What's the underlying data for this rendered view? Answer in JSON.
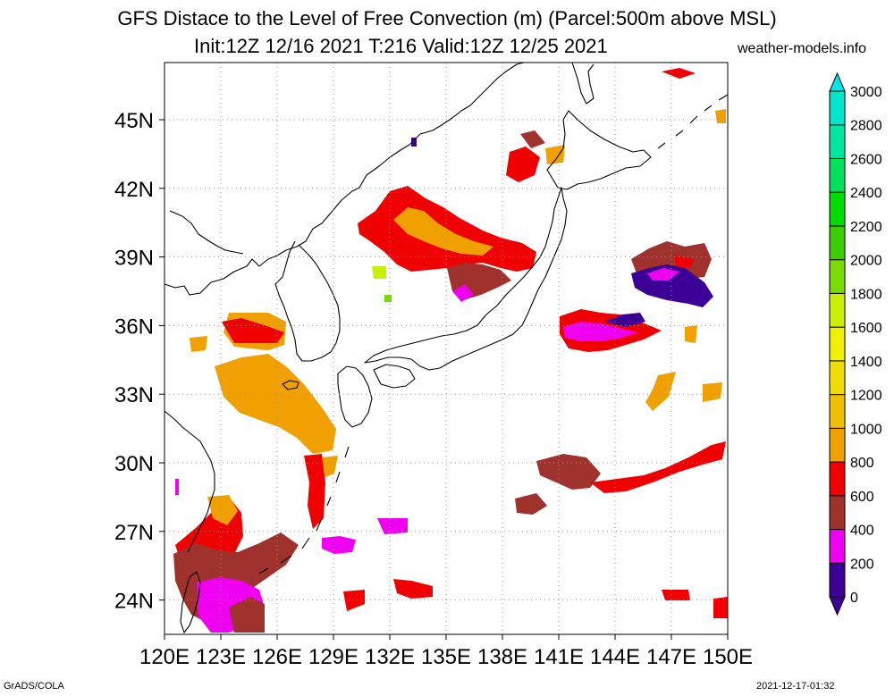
{
  "header": {
    "title": "GFS Distace to the Level of Free Convection (m) (Parcel:500m above MSL)",
    "subtitle": "Init:12Z 12/16 2021 T:216 Valid:12Z 12/25 2021",
    "site": "weather-models.info"
  },
  "footer": {
    "left": "GrADS/COLA",
    "right": "2021-12-17-01:32"
  },
  "map": {
    "lon_range": [
      120,
      150
    ],
    "lat_range": [
      22.5,
      47.5
    ],
    "lon_labels": [
      "120E",
      "123E",
      "126E",
      "129E",
      "132E",
      "135E",
      "138E",
      "141E",
      "144E",
      "147E",
      "150E"
    ],
    "lat_labels": [
      "24N",
      "27N",
      "30N",
      "33N",
      "36N",
      "39N",
      "42N",
      "45N"
    ],
    "grid": "dotted"
  },
  "legend": {
    "levels": [
      "0",
      "200",
      "400",
      "600",
      "800",
      "1000",
      "1200",
      "1400",
      "1600",
      "1800",
      "2000",
      "2200",
      "2400",
      "2600",
      "2800",
      "3000"
    ],
    "colors": [
      "#3c0096",
      "#f000f0",
      "#a0322d",
      "#f00000",
      "#f0a000",
      "#f0bf00",
      "#f0dc00",
      "#f0f000",
      "#c8f000",
      "#78dc00",
      "#3ccc00",
      "#00dc00",
      "#00e05a",
      "#00e6a0",
      "#00e6cc",
      "#00f0f0"
    ],
    "under_color": "#3c0096",
    "over_color": "#00e6e6"
  },
  "colors": {
    "coast": "#000000",
    "grid": "#999999"
  }
}
